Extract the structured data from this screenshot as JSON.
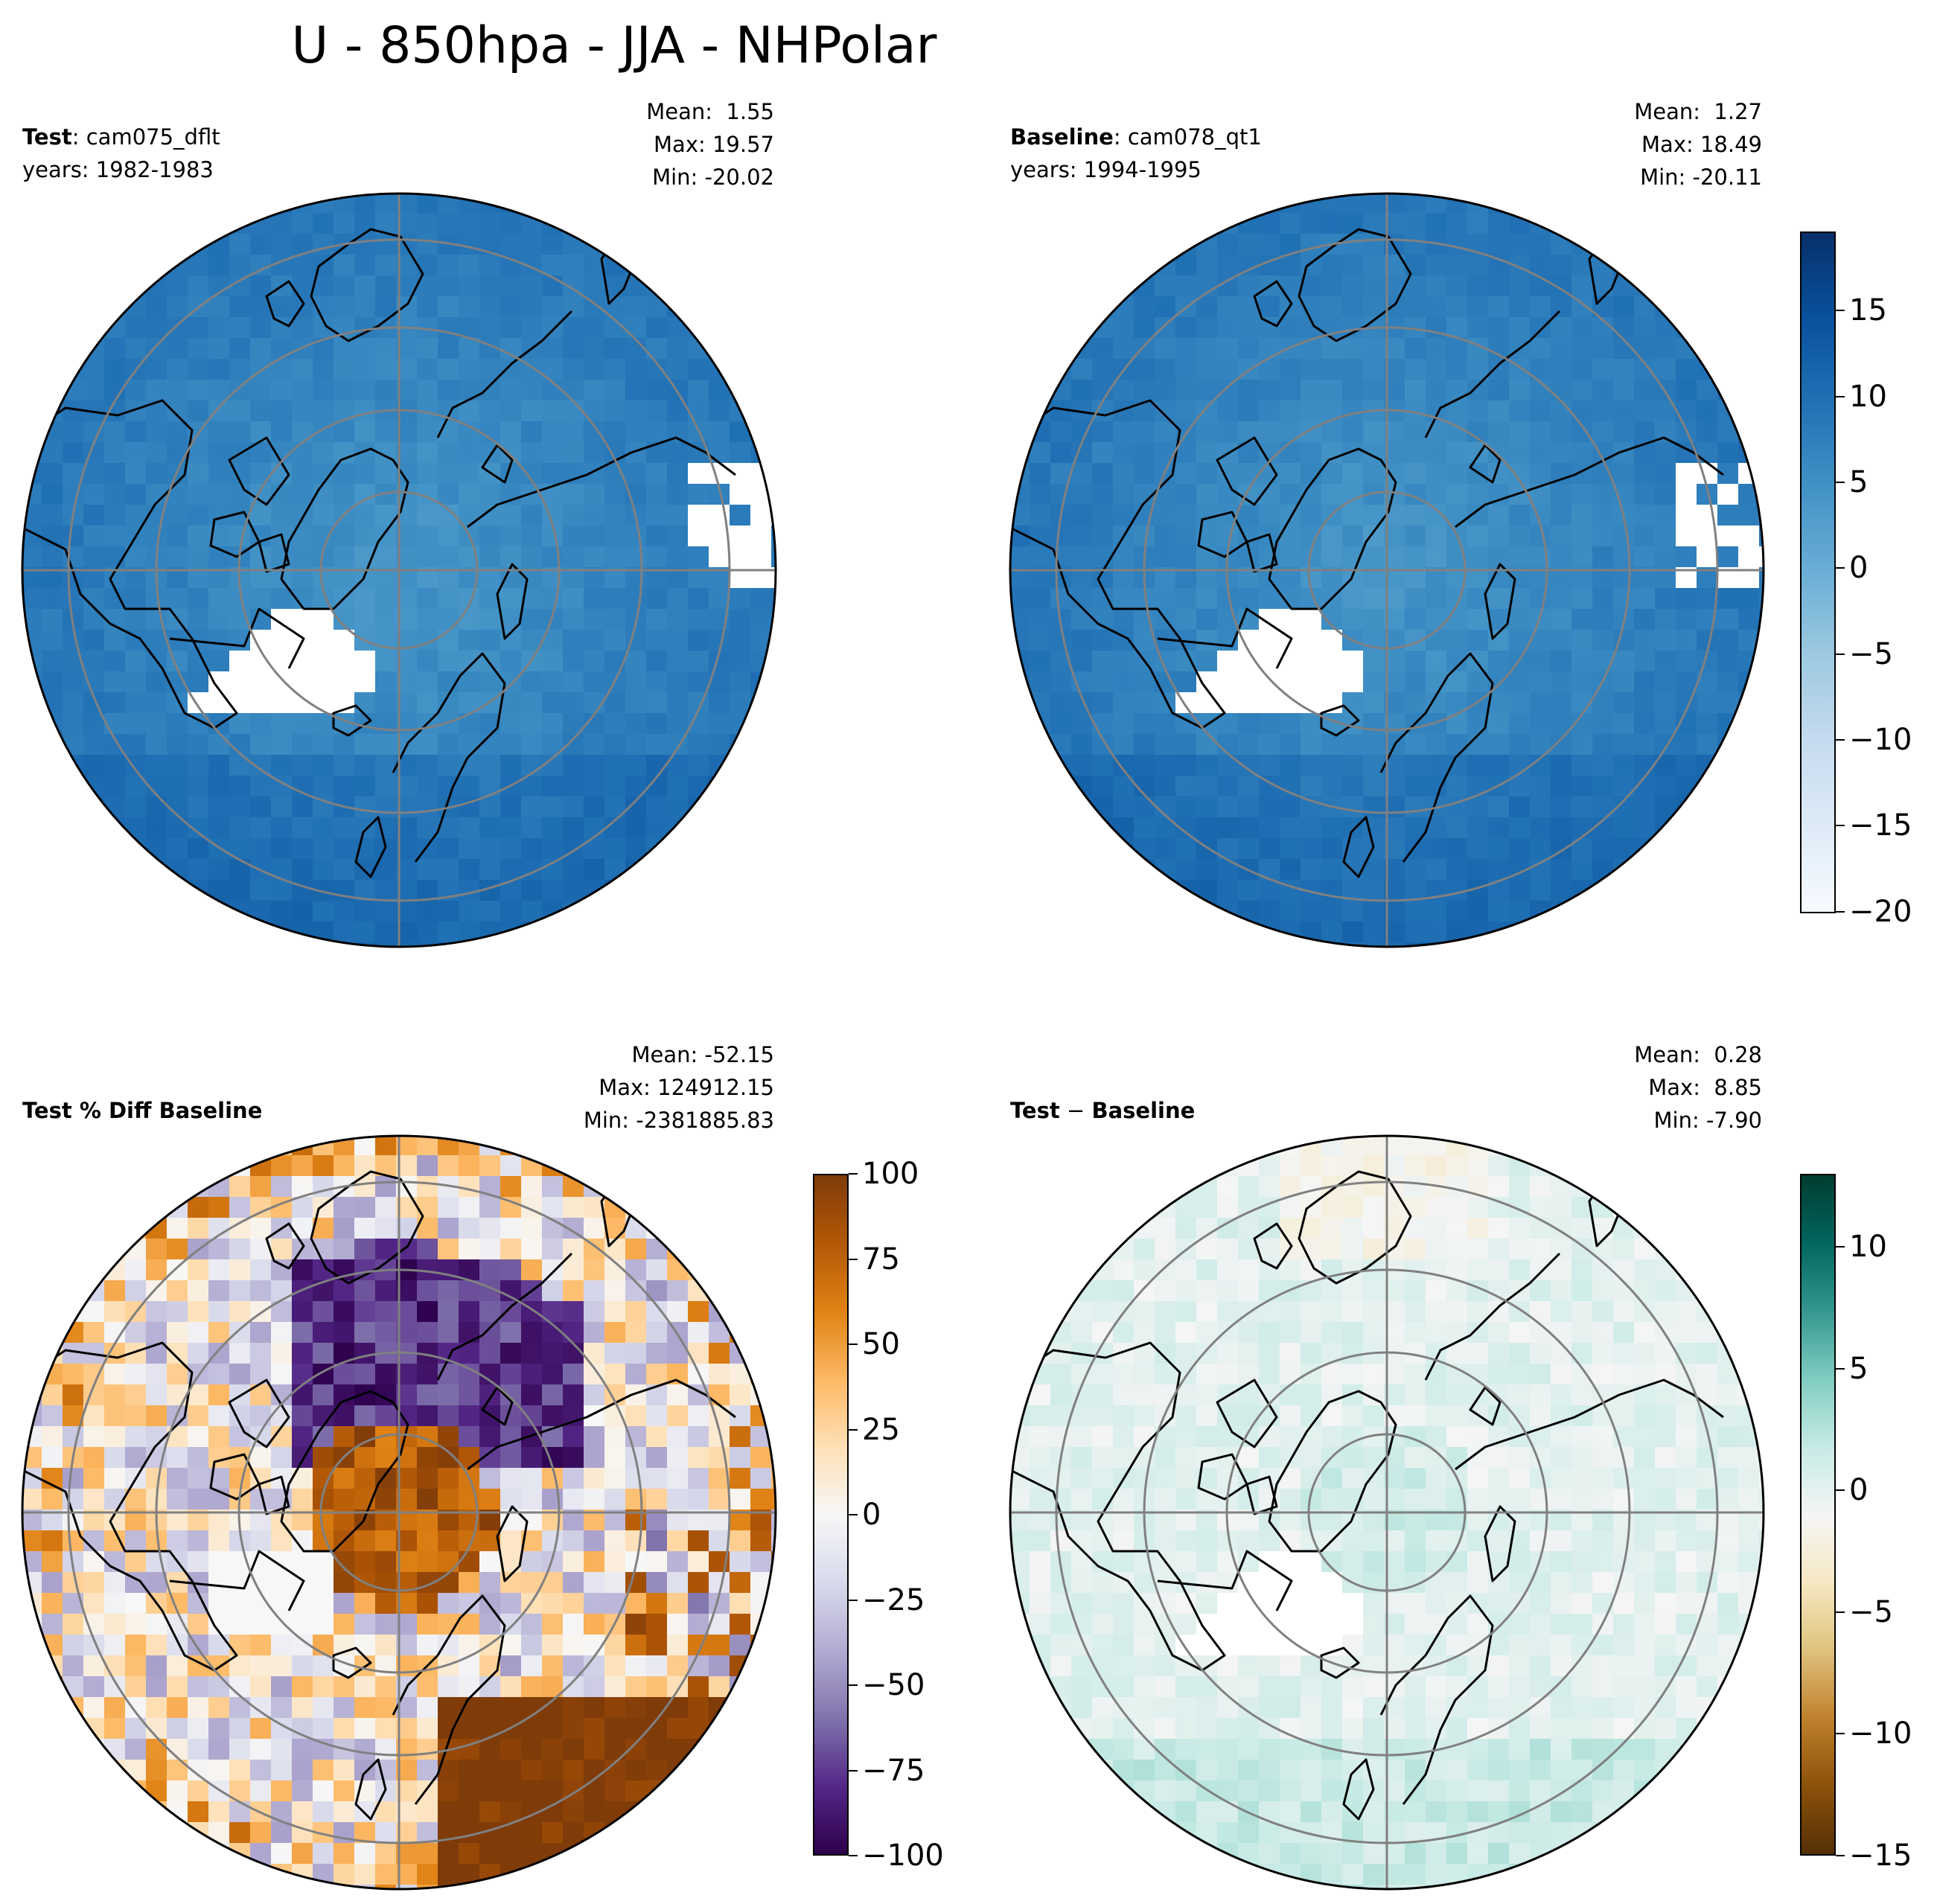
{
  "figure": {
    "title": "U - 850hpa - JJA - NHPolar"
  },
  "colors": {
    "blues": [
      "#f7fbff",
      "#deebf7",
      "#c6dbef",
      "#9ecae1",
      "#6baed6",
      "#4292c6",
      "#2171b5",
      "#08519c",
      "#08306b"
    ],
    "puor": [
      "#2d004b",
      "#542788",
      "#8073ac",
      "#b2abd2",
      "#d8daeb",
      "#f7f7f7",
      "#fee0b6",
      "#fdb863",
      "#e08214",
      "#b35806",
      "#7f3b08"
    ],
    "brbg": [
      "#543005",
      "#8c510a",
      "#bf812d",
      "#dfc27d",
      "#f6e8c3",
      "#f5f5f5",
      "#c7eae5",
      "#80cdc1",
      "#35978f",
      "#01665e",
      "#003c30"
    ],
    "gridline": "#808080",
    "coastline": "#000000"
  },
  "panels": [
    {
      "id": "test",
      "label_bold": "Test",
      "label_sep": ": ",
      "label_rest": "cam075_dflt",
      "years": "years: 1982-1983",
      "mean": "Mean:  1.55",
      "max": "Max: 19.57",
      "min": "Min: -20.02"
    },
    {
      "id": "baseline",
      "label_bold": "Baseline",
      "label_sep": ": ",
      "label_rest": "cam078_qt1",
      "years": "years: 1994-1995",
      "mean": "Mean:  1.27",
      "max": "Max: 18.49",
      "min": "Min: -20.11"
    },
    {
      "id": "pctdiff",
      "label_bold": "Test % Diff Baseline",
      "mean": "Mean: -52.15",
      "max": "Max: 124912.15",
      "min": "Min: -2381885.83"
    },
    {
      "id": "diff",
      "label_bold": "Test",
      "label_sep": " − ",
      "label_rest": "Baseline",
      "mean": "Mean:  0.28",
      "max": "Max:  8.85",
      "min": "Min: -7.90"
    }
  ],
  "colorbars": {
    "field": {
      "ticks": [
        "15",
        "10",
        "5",
        "0",
        "−5",
        "−10",
        "−15",
        "−20"
      ],
      "range": [
        -20.1,
        19.6
      ]
    },
    "pctdiff": {
      "ticks": [
        "100",
        "75",
        "50",
        "25",
        "0",
        "−25",
        "−50",
        "−75",
        "−100"
      ],
      "range": [
        -100,
        100
      ]
    },
    "diff": {
      "ticks": [
        "10",
        "5",
        "0",
        "−5",
        "−10",
        "−15"
      ],
      "range": [
        -15,
        13
      ]
    }
  },
  "chart_data": [
    {
      "type": "heatmap",
      "title": "Test: cam075_dflt",
      "projection": "north polar stereographic",
      "colormap": "Blues",
      "vmin": -20.1,
      "vmax": 19.6,
      "mean": 1.55,
      "max": 19.57,
      "min": -20.02
    },
    {
      "type": "heatmap",
      "title": "Baseline: cam078_qt1",
      "projection": "north polar stereographic",
      "colormap": "Blues",
      "vmin": -20.1,
      "vmax": 19.6,
      "mean": 1.27,
      "max": 18.49,
      "min": -20.11
    },
    {
      "type": "heatmap",
      "title": "Test % Diff Baseline",
      "projection": "north polar stereographic",
      "colormap": "PuOr",
      "vmin": -100,
      "vmax": 100,
      "mean": -52.15,
      "max": 124912.15,
      "min": -2381885.83
    },
    {
      "type": "heatmap",
      "title": "Test − Baseline",
      "projection": "north polar stereographic",
      "colormap": "BrBG",
      "vmin": -15,
      "vmax": 13,
      "mean": 0.28,
      "max": 8.85,
      "min": -7.9
    }
  ]
}
